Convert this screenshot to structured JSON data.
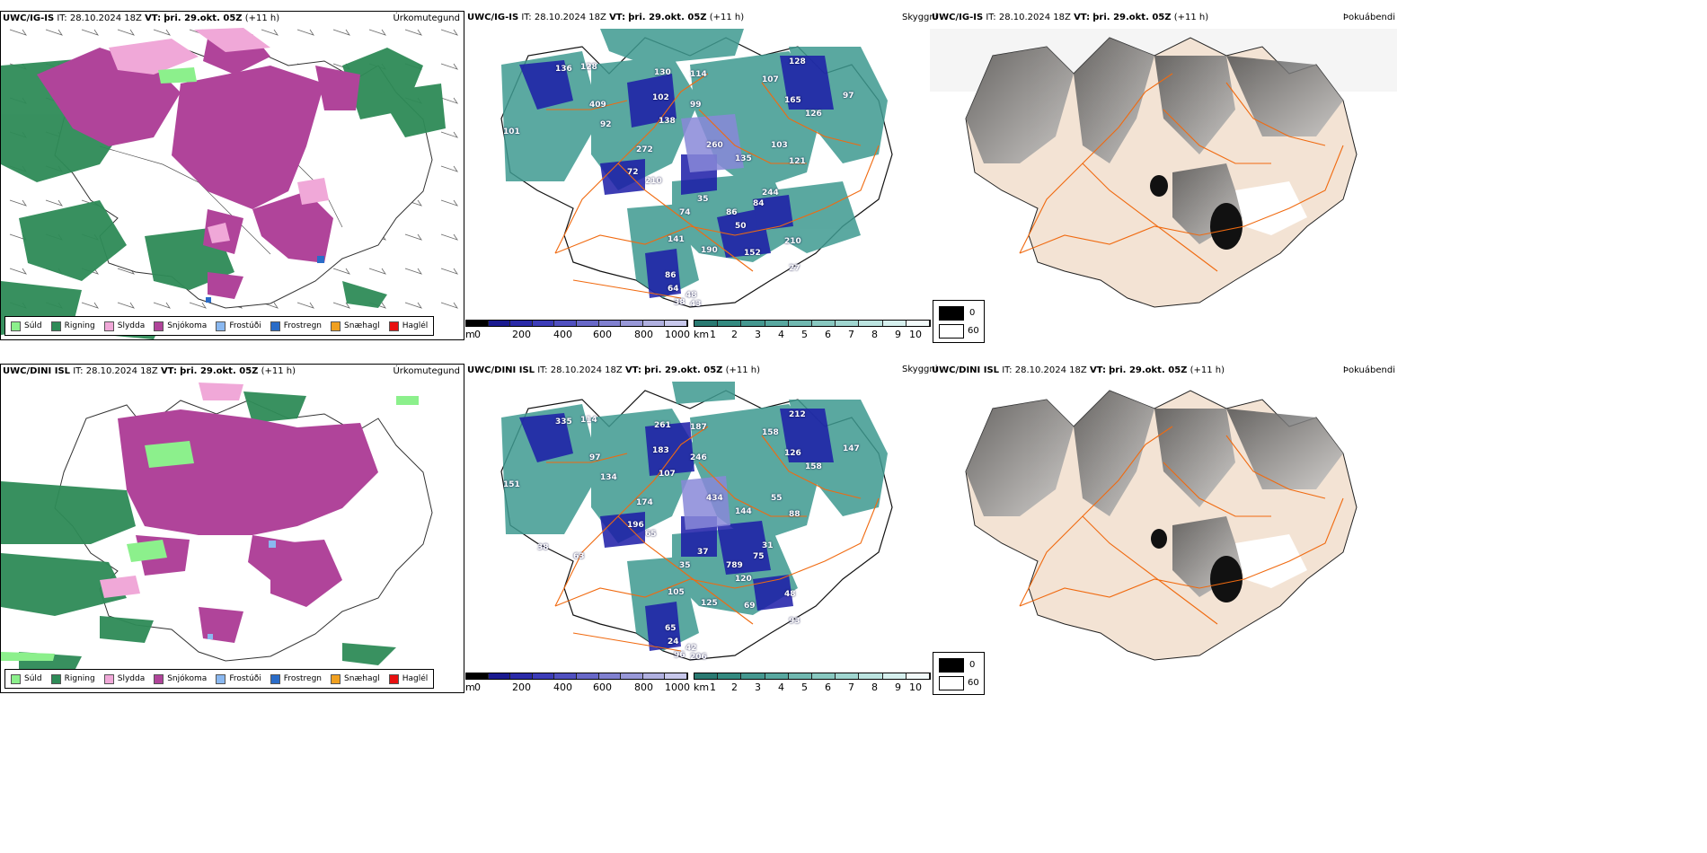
{
  "colors": {
    "drizzle": "#8cf08c",
    "rain": "#2e8b57",
    "sleet": "#f0a8d8",
    "snow": "#b0449a",
    "freezing_drizzle": "#8ab8f0",
    "freezing_rain": "#2a6cc8",
    "snow_grains": "#f0a020",
    "hail": "#e81010",
    "roads": "#f06a10",
    "land_shade": "#f3e3d4",
    "coast": "#222222"
  },
  "legend": {
    "items": [
      {
        "label": "Súld",
        "color_key": "drizzle"
      },
      {
        "label": "Rigning",
        "color_key": "rain"
      },
      {
        "label": "Slydda",
        "color_key": "sleet"
      },
      {
        "label": "Snjókoma",
        "color_key": "snow"
      },
      {
        "label": "Frostúði",
        "color_key": "freezing_drizzle"
      },
      {
        "label": "Frostregn",
        "color_key": "freezing_rain"
      },
      {
        "label": "Snæhagl",
        "color_key": "snow_grains"
      },
      {
        "label": "Haglél",
        "color_key": "hail"
      }
    ]
  },
  "rows": [
    {
      "model": "UWC/IG-IS",
      "it": "IT: 28.10.2024 18Z",
      "vt_label": "VT:",
      "vt": "þri. 29.okt. 05Z",
      "lead": "(+11 h)",
      "precip_title": "Úrkomutegund",
      "fog_title": "Þokuábendi",
      "sky_label": "Skyggni",
      "cloud_numbers": [
        "136",
        "128",
        "130",
        "114",
        "128",
        "107",
        "97",
        "102",
        "165",
        "409",
        "99",
        "126",
        "92",
        "138",
        "101",
        "272",
        "260",
        "135",
        "72",
        "210",
        "103",
        "121",
        "244",
        "35",
        "74",
        "86",
        "84",
        "50",
        "210",
        "141",
        "190",
        "152",
        "27",
        "86",
        "64",
        "48",
        "43",
        "38"
      ]
    },
    {
      "model": "UWC/DINI ISL",
      "it": "IT: 28.10.2024 18Z",
      "vt_label": "VT:",
      "vt": "þri. 29.okt. 05Z",
      "lead": "(+11 h)",
      "precip_title": "Úrkomutegund",
      "fog_title": "Þokuábendi",
      "sky_label": "Skyggni",
      "cloud_numbers": [
        "335",
        "114",
        "261",
        "187",
        "212",
        "158",
        "147",
        "183",
        "126",
        "97",
        "246",
        "158",
        "134",
        "107",
        "151",
        "174",
        "434",
        "144",
        "196",
        "65",
        "55",
        "88",
        "31",
        "37",
        "35",
        "789",
        "75",
        "120",
        "48",
        "105",
        "125",
        "69",
        "93",
        "65",
        "24",
        "42",
        "206",
        "96",
        "63",
        "38"
      ]
    }
  ],
  "height_bar": {
    "unit": "m",
    "ticks": [
      "0",
      "200",
      "400",
      "600",
      "800",
      "1000"
    ]
  },
  "visibility_bar": {
    "unit": "km",
    "ticks": [
      "1",
      "2",
      "3",
      "4",
      "5",
      "6",
      "7",
      "8",
      "9",
      "10"
    ]
  },
  "cloud_key": {
    "black": "0",
    "white": "60"
  }
}
